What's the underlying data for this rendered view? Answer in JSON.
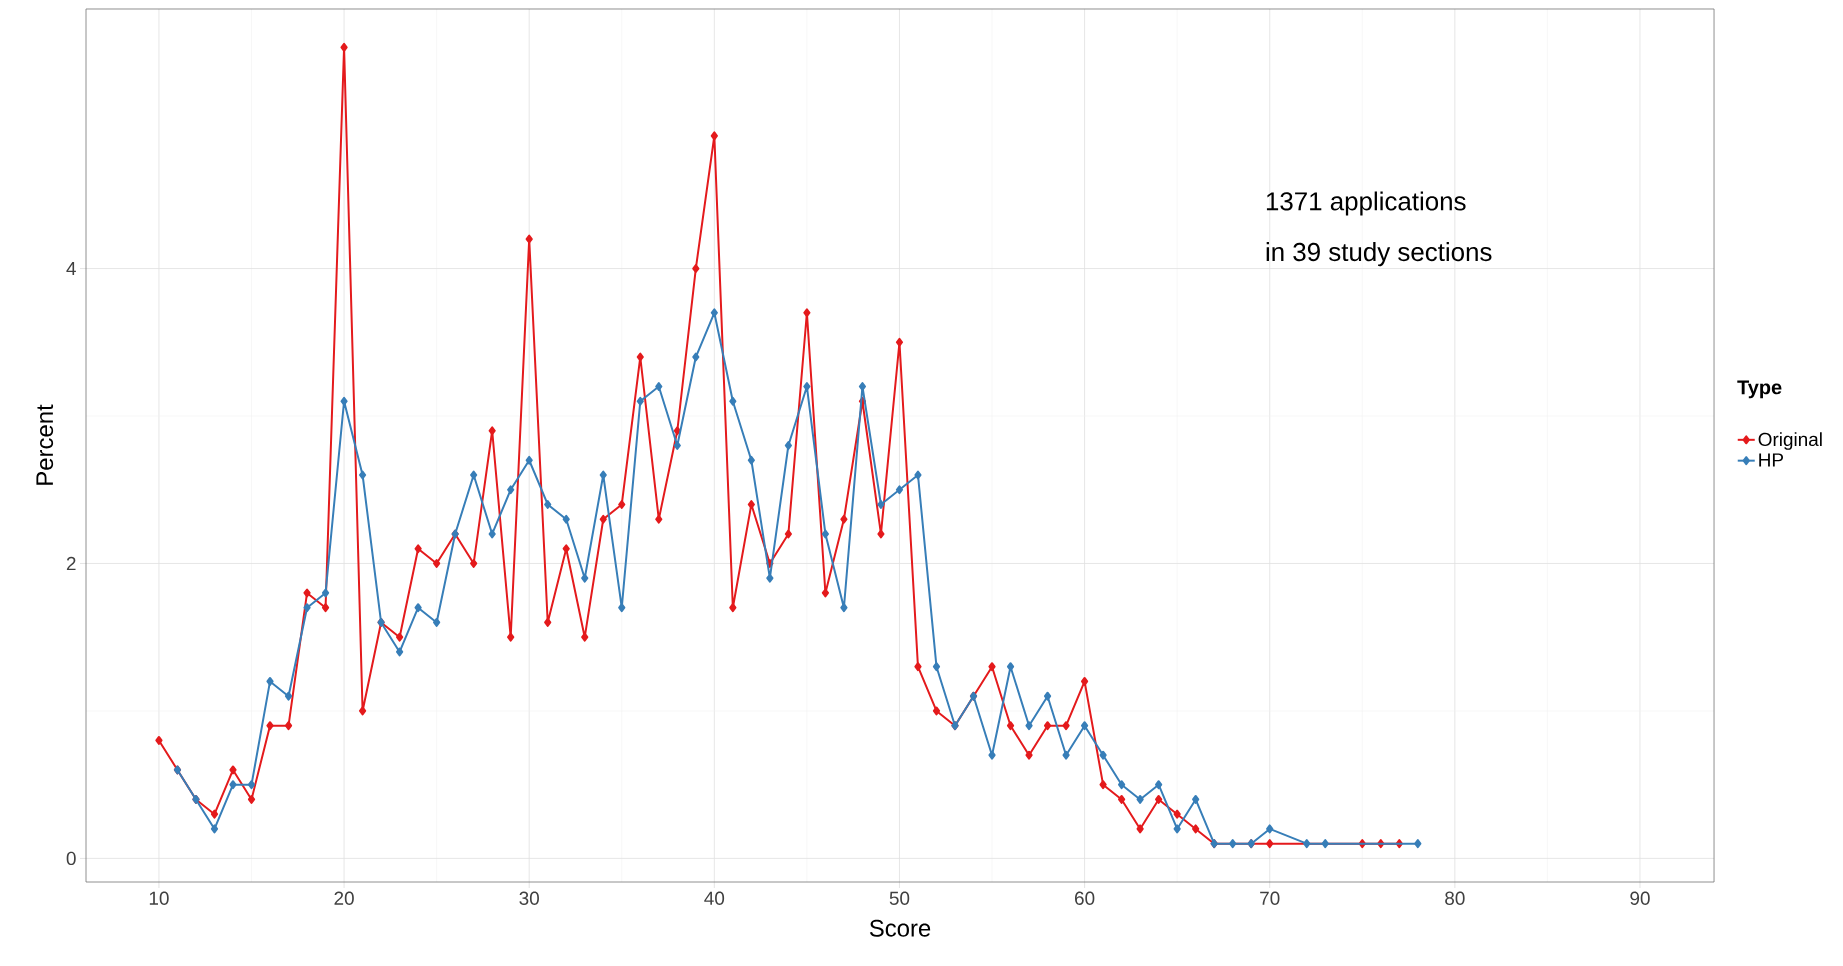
{
  "chart_data": {
    "type": "line",
    "xlabel": "Score",
    "ylabel": "Percent",
    "legend_title": "Type",
    "annotations": [
      "1371 applications",
      "in 39 study sections"
    ],
    "xlim": [
      6.06,
      94.0
    ],
    "ylim": [
      -0.16,
      5.76
    ],
    "xticks": [
      10,
      20,
      30,
      40,
      50,
      60,
      70,
      80,
      90
    ],
    "yticks": [
      0,
      2,
      4
    ],
    "grid": true,
    "legend": "right",
    "marker": "diamond",
    "line_style": "solid",
    "series": [
      {
        "name": "Original",
        "color": "#e41a1c",
        "x": [
          10,
          11,
          12,
          13,
          14,
          15,
          16,
          17,
          18,
          19,
          20,
          21,
          22,
          23,
          24,
          25,
          26,
          27,
          28,
          29,
          30,
          31,
          32,
          33,
          34,
          35,
          36,
          37,
          38,
          39,
          40,
          41,
          42,
          43,
          44,
          45,
          46,
          47,
          48,
          49,
          50,
          51,
          52,
          53,
          54,
          55,
          56,
          57,
          58,
          59,
          60,
          61,
          62,
          63,
          64,
          65,
          66,
          67,
          68,
          69,
          70,
          75,
          76,
          77
        ],
        "values": [
          0.8,
          0.6,
          0.4,
          0.3,
          0.6,
          0.4,
          0.9,
          0.9,
          1.8,
          1.7,
          5.5,
          1.0,
          1.6,
          1.5,
          2.1,
          2.0,
          2.2,
          2.0,
          2.9,
          1.5,
          4.2,
          1.6,
          2.1,
          1.5,
          2.3,
          2.4,
          3.4,
          2.3,
          2.9,
          4.0,
          4.9,
          1.7,
          2.4,
          2.0,
          2.2,
          3.7,
          1.8,
          2.3,
          3.1,
          2.2,
          3.5,
          1.3,
          1.0,
          0.9,
          1.1,
          1.3,
          0.9,
          0.7,
          0.9,
          0.9,
          1.2,
          0.5,
          0.4,
          0.2,
          0.4,
          0.3,
          0.2,
          0.1,
          null,
          0.1,
          0.1,
          0.1,
          0.1,
          0.1
        ]
      },
      {
        "name": "HP",
        "color": "#377eb8",
        "x": [
          11,
          12,
          13,
          14,
          15,
          16,
          17,
          18,
          19,
          20,
          21,
          22,
          23,
          24,
          25,
          26,
          27,
          28,
          29,
          30,
          31,
          32,
          33,
          34,
          35,
          36,
          37,
          38,
          39,
          40,
          41,
          42,
          43,
          44,
          45,
          46,
          47,
          48,
          49,
          50,
          51,
          52,
          53,
          54,
          55,
          56,
          57,
          58,
          59,
          60,
          61,
          62,
          63,
          64,
          65,
          66,
          67,
          68,
          69,
          70,
          72,
          73,
          78
        ],
        "values": [
          0.6,
          0.4,
          0.2,
          0.5,
          0.5,
          1.2,
          1.1,
          1.7,
          1.8,
          3.1,
          2.6,
          1.6,
          1.4,
          1.7,
          1.6,
          2.2,
          2.6,
          2.2,
          2.5,
          2.7,
          2.4,
          2.3,
          1.9,
          2.6,
          1.7,
          3.1,
          3.2,
          2.8,
          3.4,
          3.7,
          3.1,
          2.7,
          1.9,
          2.8,
          3.2,
          2.2,
          1.7,
          3.2,
          2.4,
          2.5,
          2.6,
          1.3,
          0.9,
          1.1,
          0.7,
          1.3,
          0.9,
          1.1,
          0.7,
          0.9,
          0.7,
          0.5,
          0.4,
          0.5,
          0.2,
          0.4,
          0.1,
          0.1,
          0.1,
          0.2,
          0.1,
          0.1,
          0.1
        ]
      }
    ]
  }
}
